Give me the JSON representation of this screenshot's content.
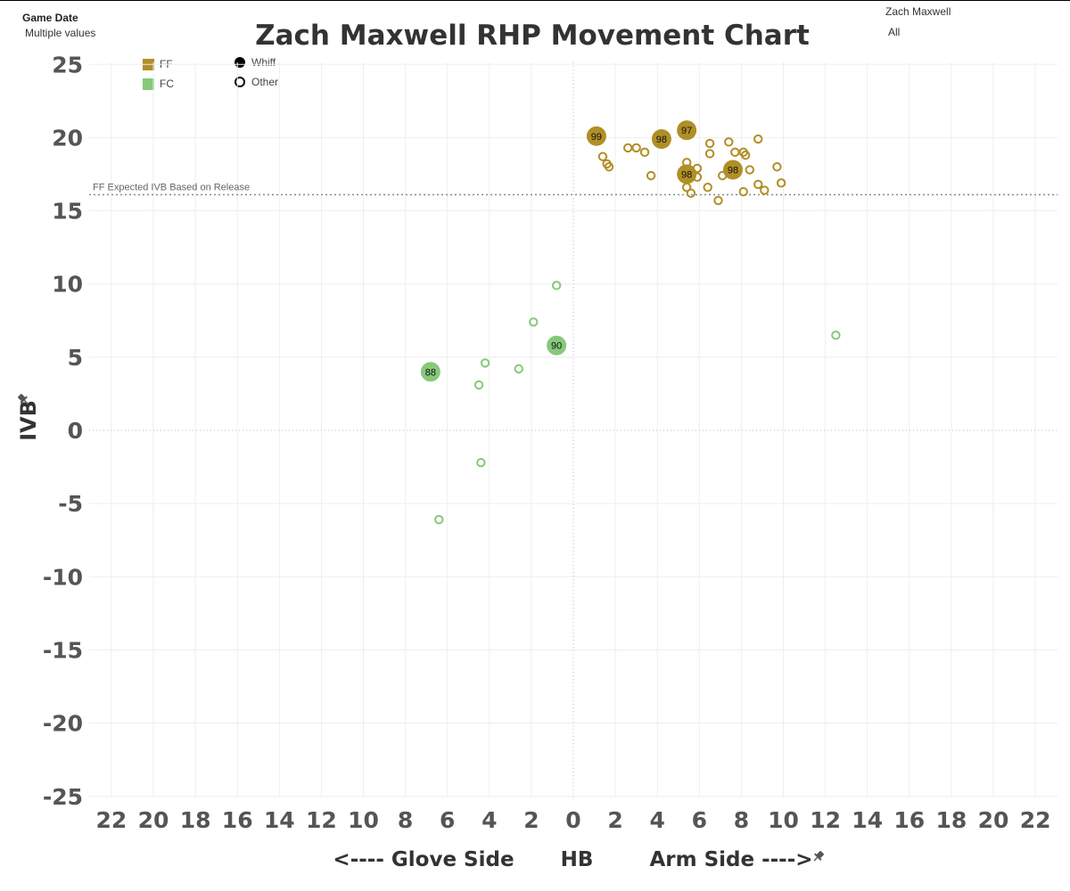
{
  "filters": {
    "game_date": {
      "label": "Game Date",
      "value": "Multiple values"
    },
    "pitcher": {
      "label": "Zach Maxwell",
      "value": "All"
    }
  },
  "colors": {
    "FF": "#B08F26",
    "FC": "#86C97A",
    "axis_text": "#555555",
    "grid": "#EEEEEE"
  },
  "legend": {
    "pitch_types": [
      {
        "code": "FF",
        "label": "FF"
      },
      {
        "code": "FC",
        "label": "FC"
      }
    ],
    "outcomes": [
      {
        "label": "Whiff",
        "filled": true
      },
      {
        "label": "Other",
        "filled": false
      }
    ]
  },
  "icons": {
    "axis_pin": "pin-icon"
  },
  "chart_data": {
    "type": "scatter",
    "title": "Zach Maxwell RHP Movement Chart",
    "xlabel": "<---- Glove Side          HB          Arm Side ---->",
    "xlabel_parts": [
      "<---- Glove Side",
      "HB",
      "Arm Side ---->"
    ],
    "ylabel": "IVB",
    "xlim": [
      -23,
      23
    ],
    "ylim": [
      -26,
      26
    ],
    "x_ticks": [
      -22,
      -20,
      -18,
      -16,
      -14,
      -12,
      -10,
      -8,
      -6,
      -4,
      -2,
      0,
      2,
      4,
      6,
      8,
      10,
      12,
      14,
      16,
      18,
      20,
      22
    ],
    "x_tick_labels": [
      "22",
      "20",
      "18",
      "16",
      "14",
      "12",
      "10",
      "8",
      "6",
      "4",
      "2",
      "0",
      "2",
      "4",
      "6",
      "8",
      "10",
      "12",
      "14",
      "16",
      "18",
      "20",
      "22"
    ],
    "y_ticks": [
      25,
      20,
      15,
      10,
      5,
      0,
      -5,
      -10,
      -15,
      -20,
      -25
    ],
    "y_tick_labels": [
      "25",
      "20",
      "15",
      "10",
      "5",
      "0",
      "-5",
      "-10",
      "-15",
      "-20",
      "-25"
    ],
    "grid": true,
    "reference_line": {
      "y": 16.1,
      "label": "FF Expected IVB Based on Release"
    },
    "series": [
      {
        "name": "FF",
        "points": [
          {
            "x": 1.1,
            "y": 20.1,
            "whiff": true,
            "label": "99"
          },
          {
            "x": 4.2,
            "y": 19.9,
            "whiff": true,
            "label": "98"
          },
          {
            "x": 5.4,
            "y": 20.5,
            "whiff": true,
            "label": "97"
          },
          {
            "x": 5.4,
            "y": 17.5,
            "whiff": true,
            "label": "98"
          },
          {
            "x": 7.6,
            "y": 17.8,
            "whiff": true,
            "label": "98"
          },
          {
            "x": 1.4,
            "y": 18.7,
            "whiff": false
          },
          {
            "x": 1.6,
            "y": 18.2,
            "whiff": false
          },
          {
            "x": 1.7,
            "y": 18.0,
            "whiff": false
          },
          {
            "x": 2.6,
            "y": 19.3,
            "whiff": false
          },
          {
            "x": 3.0,
            "y": 19.3,
            "whiff": false
          },
          {
            "x": 3.4,
            "y": 19.0,
            "whiff": false
          },
          {
            "x": 3.7,
            "y": 17.4,
            "whiff": false
          },
          {
            "x": 4.3,
            "y": 20.1,
            "whiff": false
          },
          {
            "x": 5.4,
            "y": 18.3,
            "whiff": false
          },
          {
            "x": 5.4,
            "y": 16.6,
            "whiff": false
          },
          {
            "x": 5.6,
            "y": 16.2,
            "whiff": false
          },
          {
            "x": 5.9,
            "y": 17.9,
            "whiff": false
          },
          {
            "x": 5.9,
            "y": 17.3,
            "whiff": false
          },
          {
            "x": 6.4,
            "y": 16.6,
            "whiff": false
          },
          {
            "x": 6.5,
            "y": 19.6,
            "whiff": false
          },
          {
            "x": 6.5,
            "y": 18.9,
            "whiff": false
          },
          {
            "x": 6.9,
            "y": 15.7,
            "whiff": false
          },
          {
            "x": 7.1,
            "y": 17.4,
            "whiff": false
          },
          {
            "x": 7.4,
            "y": 19.7,
            "whiff": false
          },
          {
            "x": 7.7,
            "y": 19.0,
            "whiff": false
          },
          {
            "x": 8.1,
            "y": 16.3,
            "whiff": false
          },
          {
            "x": 8.1,
            "y": 19.0,
            "whiff": false
          },
          {
            "x": 8.2,
            "y": 18.8,
            "whiff": false
          },
          {
            "x": 8.4,
            "y": 17.8,
            "whiff": false
          },
          {
            "x": 8.8,
            "y": 16.8,
            "whiff": false
          },
          {
            "x": 8.8,
            "y": 19.9,
            "whiff": false
          },
          {
            "x": 9.1,
            "y": 16.4,
            "whiff": false
          },
          {
            "x": 9.7,
            "y": 18.0,
            "whiff": false
          },
          {
            "x": 9.9,
            "y": 16.9,
            "whiff": false
          }
        ]
      },
      {
        "name": "FC",
        "points": [
          {
            "x": -6.8,
            "y": 4.0,
            "whiff": true,
            "label": "88"
          },
          {
            "x": -0.8,
            "y": 5.8,
            "whiff": true,
            "label": "90"
          },
          {
            "x": -0.8,
            "y": 9.9,
            "whiff": false
          },
          {
            "x": -1.9,
            "y": 7.4,
            "whiff": false
          },
          {
            "x": -2.6,
            "y": 4.2,
            "whiff": false
          },
          {
            "x": -4.2,
            "y": 4.6,
            "whiff": false
          },
          {
            "x": -4.5,
            "y": 3.1,
            "whiff": false
          },
          {
            "x": -4.4,
            "y": -2.2,
            "whiff": false
          },
          {
            "x": -6.4,
            "y": -6.1,
            "whiff": false
          },
          {
            "x": 12.5,
            "y": 6.5,
            "whiff": false
          }
        ]
      }
    ]
  }
}
